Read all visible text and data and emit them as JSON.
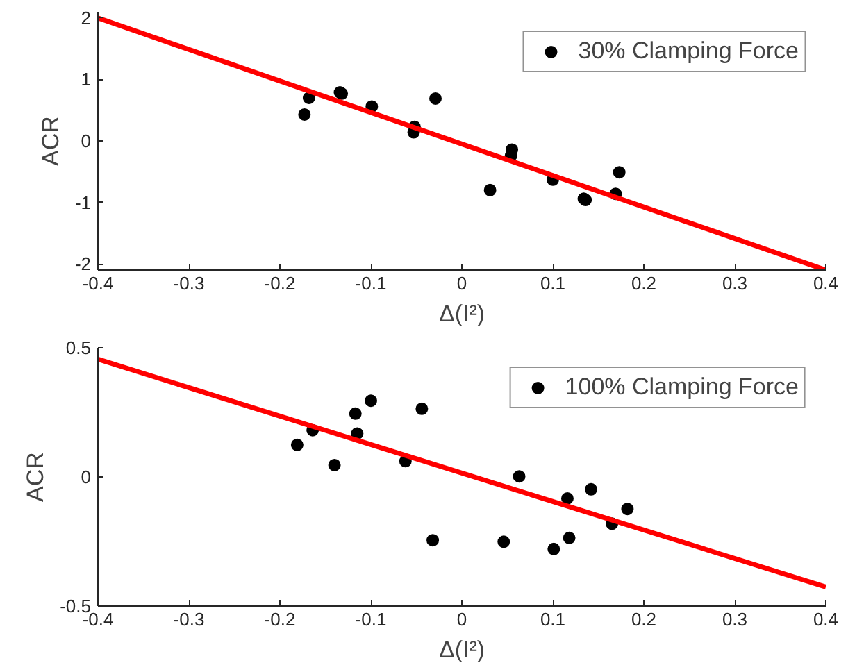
{
  "chart_data": [
    {
      "type": "scatter",
      "xlabel": "Δ(I²)",
      "ylabel": "ACR",
      "xlim": [
        -0.4,
        0.4
      ],
      "ylim": [
        -2.1,
        2.1
      ],
      "xticks": [
        -0.4,
        -0.3,
        -0.2,
        -0.1,
        0,
        0.1,
        0.2,
        0.3,
        0.4
      ],
      "yticks": [
        -2,
        -1,
        0,
        1,
        2
      ],
      "grid": false,
      "legend": "top right",
      "series": [
        {
          "name": "30% Clamping Force",
          "color": "#000000",
          "marker": "circle",
          "x": [
            -0.173,
            -0.168,
            -0.134,
            -0.132,
            -0.099,
            -0.052,
            -0.053,
            -0.029,
            0.031,
            0.055,
            0.054,
            0.1,
            0.134,
            0.136,
            0.169,
            0.173
          ],
          "values": [
            0.43,
            0.7,
            0.79,
            0.77,
            0.56,
            0.23,
            0.14,
            0.69,
            -0.8,
            -0.14,
            -0.24,
            -0.63,
            -0.94,
            -0.96,
            -0.86,
            -0.51
          ]
        },
        {
          "type": "line",
          "marker": "none",
          "color": "#ff0000",
          "x": [
            -0.4,
            0.4
          ],
          "values": [
            2.0,
            -2.1
          ]
        }
      ]
    },
    {
      "type": "scatter",
      "xlabel": "Δ(I²)",
      "ylabel": "ACR",
      "xlim": [
        -0.4,
        0.4
      ],
      "ylim": [
        -0.5,
        0.5
      ],
      "xticks": [
        -0.4,
        -0.3,
        -0.2,
        -0.1,
        0,
        0.1,
        0.2,
        0.3,
        0.4
      ],
      "yticks": [
        -0.5,
        0,
        0.5
      ],
      "grid": false,
      "legend": "top right",
      "series": [
        {
          "name": "100% Clamping Force",
          "color": "#000000",
          "marker": "circle",
          "x": [
            -0.181,
            -0.164,
            -0.14,
            -0.117,
            -0.115,
            -0.1,
            -0.062,
            -0.044,
            -0.032,
            0.046,
            0.063,
            0.101,
            0.116,
            0.118,
            0.142,
            0.165,
            0.182
          ],
          "values": [
            0.124,
            0.181,
            0.046,
            0.245,
            0.168,
            0.295,
            0.061,
            0.264,
            -0.245,
            -0.251,
            0.002,
            -0.279,
            -0.083,
            -0.236,
            -0.048,
            -0.181,
            -0.124
          ]
        },
        {
          "type": "line",
          "marker": "none",
          "color": "#ff0000",
          "x": [
            -0.4,
            0.4
          ],
          "values": [
            0.456,
            -0.426
          ]
        }
      ]
    }
  ]
}
